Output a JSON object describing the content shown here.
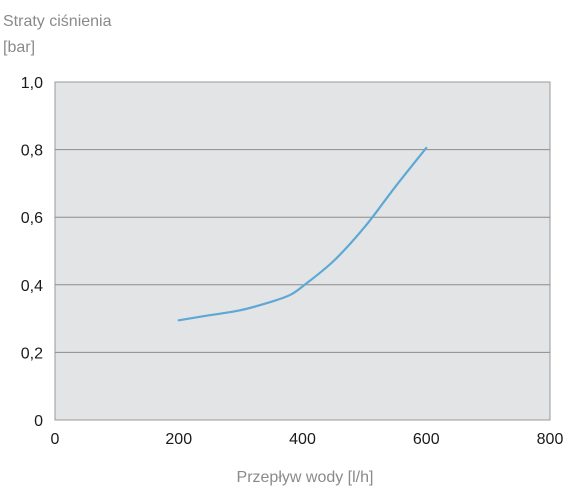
{
  "chart_data": {
    "type": "line",
    "title": "",
    "ylabel_lines": [
      "Straty ciśnienia",
      "[bar]"
    ],
    "xlabel": "Przepływ wody [l/h]",
    "xlim": [
      0,
      800
    ],
    "ylim": [
      0,
      1.0
    ],
    "xticks": [
      0,
      200,
      400,
      600,
      800
    ],
    "xtick_labels": [
      "0",
      "200",
      "400",
      "600",
      "800"
    ],
    "yticks": [
      0,
      0.2,
      0.4,
      0.6,
      0.8,
      1.0
    ],
    "ytick_labels": [
      "0",
      "0,2",
      "0,4",
      "0,6",
      "0,8",
      "1,0"
    ],
    "grid": "horizontal",
    "plot_background": "#e3e4e6",
    "line_color": "#5ba9d4",
    "series": [
      {
        "x": [
          200,
          250,
          300,
          350,
          380,
          400,
          450,
          500,
          550,
          600
        ],
        "y": [
          0.295,
          0.31,
          0.325,
          0.35,
          0.37,
          0.395,
          0.47,
          0.57,
          0.69,
          0.805
        ]
      }
    ]
  }
}
